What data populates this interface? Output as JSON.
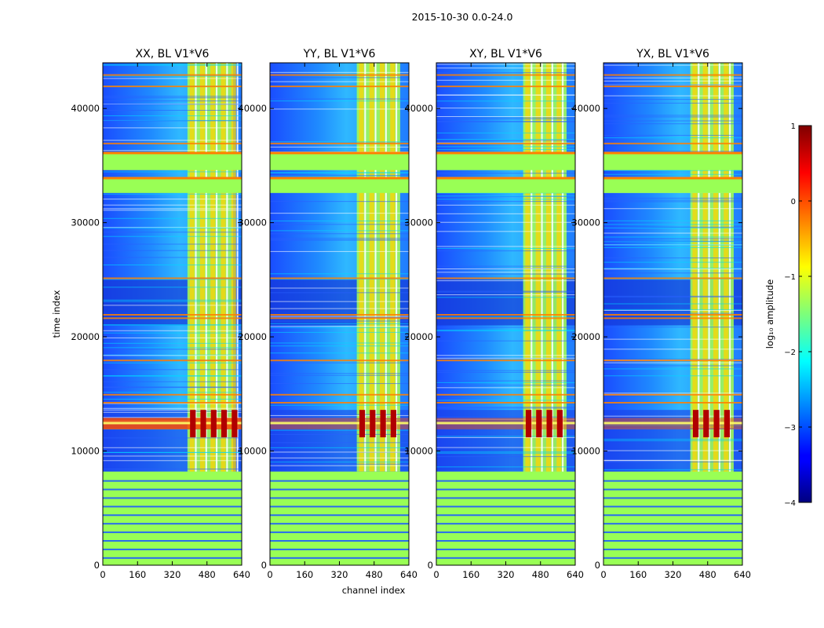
{
  "chart_data": {
    "type": "heatmap",
    "title": "2015-10-30 0.0-24.0",
    "xlabel": "channel index",
    "ylabel": "time index",
    "xlim": [
      0,
      640
    ],
    "ylim": [
      0,
      44000
    ],
    "x_ticks": [
      "0",
      "160",
      "320",
      "480",
      "640"
    ],
    "y_ticks": [
      "0",
      "10000",
      "20000",
      "30000",
      "40000"
    ],
    "y_tick_values": [
      0,
      10000,
      20000,
      30000,
      40000
    ],
    "x_tick_values": [
      0,
      160,
      320,
      480,
      640
    ],
    "panels": [
      {
        "title": "XX, BL V1*V6",
        "burst_channel_start": 390,
        "burst_channel_end": 600
      },
      {
        "title": "YY, BL V1*V6",
        "burst_channel_start": 400,
        "burst_channel_end": 600
      },
      {
        "title": "XY, BL V1*V6",
        "burst_channel_start": 400,
        "burst_channel_end": 600
      },
      {
        "title": "YX, BL V1*V6",
        "burst_channel_start": 400,
        "burst_channel_end": 600
      }
    ],
    "features": {
      "flagged_low_time_range": [
        0,
        8200
      ],
      "flagged_band_1": [
        32600,
        34000
      ],
      "flagged_band_2": [
        34600,
        36200
      ],
      "flare_time_range": [
        11200,
        13600
      ],
      "flare_peak_time": 12400
    },
    "colorbar": {
      "label": "log₁₀ amplitude",
      "range": [
        -4,
        1
      ],
      "ticks": [
        "1",
        "0",
        "−1",
        "−2",
        "−3",
        "−4"
      ],
      "colormap": "jet"
    }
  },
  "colors": {
    "flag_fill": "#99ff55",
    "flag_edge": "#ff7f00"
  }
}
